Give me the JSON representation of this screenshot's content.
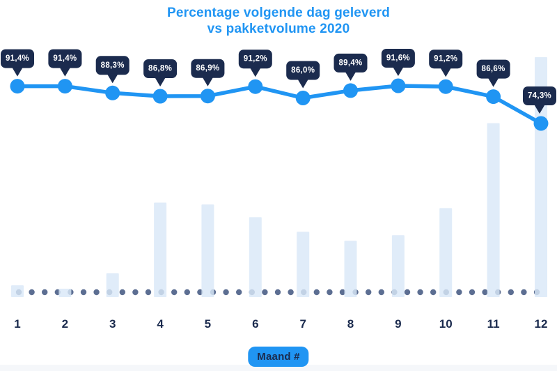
{
  "title": {
    "line1": "Percentage volgende dag geleverd",
    "line2": "vs pakketvolume 2020"
  },
  "xaxis_badge": {
    "label": "Maand #"
  },
  "colors": {
    "accent_blue": "#2095f3",
    "dark_navy": "#1b2b4e",
    "bar_fill": "#d9e8f8",
    "baseline_dot": "#5c6e92",
    "callout_text": "#ffffff",
    "background": "#ffffff"
  },
  "chart_data": {
    "type": "combo: line over bar",
    "title": "Percentage volgende dag geleverd vs pakketvolume 2020",
    "xlabel": "Maand #",
    "categories": [
      "1",
      "2",
      "3",
      "4",
      "5",
      "6",
      "7",
      "8",
      "9",
      "10",
      "11",
      "12"
    ],
    "legend": "none",
    "grid": "dotted baseline only",
    "series": [
      {
        "name": "Percentage volgende dag geleverd",
        "type": "line",
        "unit": "%",
        "values": [
          91.4,
          91.4,
          88.3,
          86.8,
          86.9,
          91.2,
          86.0,
          89.4,
          91.6,
          91.2,
          86.6,
          74.3
        ],
        "point_labels": [
          "91,4%",
          "91,4%",
          "88,3%",
          "86,8%",
          "86,9%",
          "91,2%",
          "86,0%",
          "89,4%",
          "91,6%",
          "91,2%",
          "86,6%",
          "74,3%"
        ],
        "ylim": [
          74.3,
          91.6
        ]
      },
      {
        "name": "Pakketvolume 2020",
        "type": "bar",
        "unit": "relative volume index (month 12 = 100)",
        "values": [
          4.9,
          3.5,
          9.9,
          39.4,
          38.6,
          33.3,
          27.2,
          23.5,
          25.8,
          37.1,
          72.5,
          100
        ]
      }
    ]
  }
}
